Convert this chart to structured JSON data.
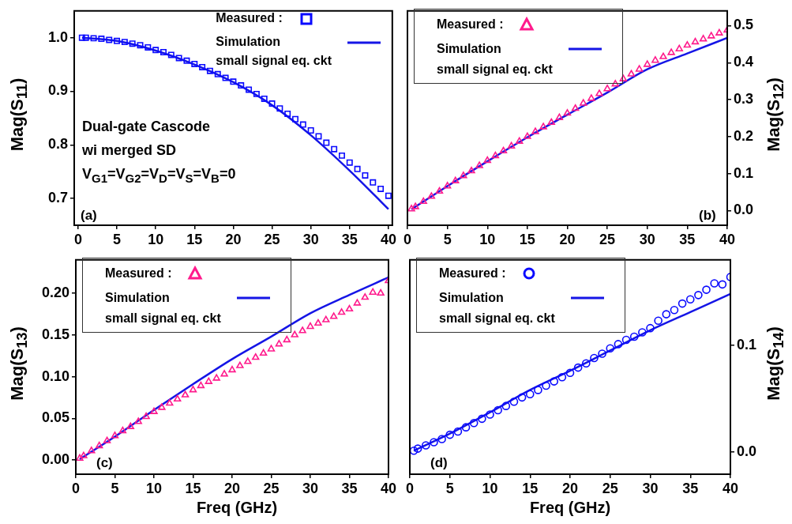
{
  "chart_data": [
    {
      "type": "line",
      "ylabel": "Mag(S$_{11}$)",
      "xlim": [
        -0.5,
        40.5
      ],
      "xticks": [
        0,
        5,
        10,
        15,
        20,
        25,
        30,
        35,
        40
      ],
      "ylim": [
        0.65,
        1.05
      ],
      "yticks": [
        0.7,
        0.8,
        0.9,
        {
          "value": 1,
          "label": "1.0"
        }
      ],
      "grid": false,
      "legend": "top right",
      "annotations": [
        "Dual-gate Cascode",
        "wi merged SD",
        "V$_{G1}$=V$_{G2}$=V$_{D}$=V$_{S}$=V$_{B}$=0",
        "(a)"
      ],
      "series": [
        {
          "name": "Measured :",
          "type": "scatter",
          "marker": "square",
          "color": "#0a0aff",
          "x": [
            0.5,
            1,
            2,
            3,
            4,
            5,
            6,
            7,
            8,
            9,
            10,
            11,
            12,
            13,
            14,
            15,
            16,
            17,
            18,
            19,
            20,
            21,
            22,
            23,
            24,
            25,
            26,
            27,
            28,
            29,
            30,
            31,
            32,
            33,
            34,
            35,
            36,
            37,
            38,
            39,
            40
          ],
          "values": [
            1.0,
            1.0,
            0.999,
            0.998,
            0.996,
            0.994,
            0.992,
            0.989,
            0.986,
            0.982,
            0.977,
            0.973,
            0.968,
            0.962,
            0.957,
            0.951,
            0.945,
            0.938,
            0.932,
            0.925,
            0.918,
            0.911,
            0.903,
            0.895,
            0.886,
            0.877,
            0.868,
            0.858,
            0.848,
            0.838,
            0.827,
            0.816,
            0.804,
            0.792,
            0.78,
            0.767,
            0.755,
            0.743,
            0.73,
            0.718,
            0.705
          ]
        },
        {
          "name": "Simulation\nsmall signal eq. ckt",
          "marker": "none",
          "color": "#1515e6",
          "x": [
            0.5,
            5,
            10,
            15,
            20,
            25,
            30,
            35,
            40
          ],
          "values": [
            1.0,
            0.994,
            0.976,
            0.95,
            0.917,
            0.874,
            0.818,
            0.752,
            0.68
          ]
        }
      ]
    },
    {
      "type": "line",
      "y2label": "Mag(S$_{12}$)",
      "xlim": [
        0,
        40
      ],
      "xticks": [
        0,
        5,
        10,
        15,
        20,
        25,
        30,
        35,
        40
      ],
      "y2lim": [
        -0.04,
        0.54
      ],
      "y2ticks": [
        {
          "value": 0,
          "label": "0.0"
        },
        0.1,
        0.2,
        0.3,
        0.4,
        0.5
      ],
      "grid": false,
      "legend": "top left",
      "annotations": [
        "(b)"
      ],
      "series": [
        {
          "name": "Measured :",
          "type": "scatter",
          "marker": "triangle",
          "axis": "y2",
          "color": "#ff1a8c",
          "x": [
            0.5,
            1,
            2,
            3,
            4,
            5,
            6,
            7,
            8,
            9,
            10,
            11,
            12,
            13,
            14,
            15,
            16,
            17,
            18,
            19,
            20,
            21,
            22,
            23,
            24,
            25,
            26,
            27,
            28,
            29,
            30,
            31,
            32,
            33,
            34,
            35,
            36,
            37,
            38,
            39,
            40
          ],
          "values": [
            0.004,
            0.01,
            0.024,
            0.038,
            0.052,
            0.066,
            0.08,
            0.094,
            0.107,
            0.121,
            0.135,
            0.148,
            0.161,
            0.174,
            0.187,
            0.2,
            0.213,
            0.226,
            0.238,
            0.251,
            0.263,
            0.276,
            0.29,
            0.303,
            0.316,
            0.329,
            0.342,
            0.356,
            0.369,
            0.382,
            0.395,
            0.406,
            0.416,
            0.427,
            0.437,
            0.447,
            0.456,
            0.464,
            0.472,
            0.48,
            0.488
          ]
        },
        {
          "name": "Simulation\nsmall signal eq. ckt",
          "marker": "none",
          "axis": "y2",
          "color": "#1515e6",
          "x": [
            0.5,
            5,
            10,
            15,
            20,
            25,
            30,
            35,
            40
          ],
          "values": [
            0.003,
            0.066,
            0.133,
            0.198,
            0.259,
            0.319,
            0.382,
            0.425,
            0.467
          ]
        }
      ]
    },
    {
      "type": "line",
      "ylabel": "Mag(S$_{13}$)",
      "xlabel": "Freq (GHz)",
      "xlim": [
        0,
        40
      ],
      "xticks": [
        0,
        5,
        10,
        15,
        20,
        25,
        30,
        35,
        40
      ],
      "ylim": [
        -0.017,
        0.24
      ],
      "yticks": [
        {
          "value": 0,
          "label": "0.00"
        },
        0.05,
        {
          "value": 0.1,
          "label": "0.10"
        },
        0.15,
        {
          "value": 0.2,
          "label": "0.20"
        }
      ],
      "grid": false,
      "legend": "top left",
      "annotations": [
        "(c)"
      ],
      "series": [
        {
          "name": "Measured :",
          "type": "scatter",
          "marker": "triangle",
          "color": "#ff1a8c",
          "x": [
            0.5,
            1,
            2,
            3,
            4,
            5,
            6,
            7,
            8,
            9,
            10,
            11,
            12,
            13,
            14,
            15,
            16,
            17,
            18,
            19,
            20,
            21,
            22,
            23,
            24,
            25,
            26,
            27,
            28,
            29,
            30,
            31,
            32,
            33,
            34,
            35,
            36,
            37,
            38,
            39,
            40
          ],
          "values": [
            0.002,
            0.005,
            0.011,
            0.017,
            0.023,
            0.029,
            0.035,
            0.04,
            0.046,
            0.052,
            0.058,
            0.063,
            0.068,
            0.073,
            0.078,
            0.084,
            0.089,
            0.094,
            0.098,
            0.103,
            0.108,
            0.113,
            0.118,
            0.123,
            0.128,
            0.133,
            0.139,
            0.144,
            0.15,
            0.155,
            0.16,
            0.164,
            0.168,
            0.172,
            0.177,
            0.181,
            0.188,
            0.195,
            0.201,
            0.2,
            0.215
          ]
        },
        {
          "name": "Simulation\nsmall signal eq. ckt",
          "marker": "none",
          "color": "#1515e6",
          "x": [
            0.5,
            5,
            10,
            15,
            20,
            25,
            30,
            35,
            40
          ],
          "values": [
            0.001,
            0.028,
            0.06,
            0.091,
            0.121,
            0.148,
            0.176,
            0.198,
            0.219
          ]
        }
      ]
    },
    {
      "type": "line",
      "y2label": "Mag(S$_{14}$)",
      "xlabel": "Freq (GHz)",
      "xlim": [
        0,
        40
      ],
      "xticks": [
        0,
        5,
        10,
        15,
        20,
        25,
        30,
        35,
        40
      ],
      "y2lim": [
        -0.021,
        0.18
      ],
      "y2ticks": [
        {
          "value": 0,
          "label": "0.0"
        },
        0.1
      ],
      "grid": false,
      "legend": "top left",
      "annotations": [
        "(d)"
      ],
      "series": [
        {
          "name": "Measured :",
          "type": "scatter",
          "marker": "circle",
          "axis": "y2",
          "color": "#0a0aff",
          "x": [
            0.5,
            1,
            2,
            3,
            4,
            5,
            6,
            7,
            8,
            9,
            10,
            11,
            12,
            13,
            14,
            15,
            16,
            17,
            18,
            19,
            20,
            21,
            22,
            23,
            24,
            25,
            26,
            27,
            28,
            29,
            30,
            31,
            32,
            33,
            34,
            35,
            36,
            37,
            38,
            39,
            40
          ],
          "values": [
            0.001,
            0.003,
            0.006,
            0.009,
            0.012,
            0.016,
            0.019,
            0.023,
            0.027,
            0.031,
            0.035,
            0.039,
            0.043,
            0.047,
            0.051,
            0.054,
            0.058,
            0.062,
            0.066,
            0.07,
            0.074,
            0.079,
            0.083,
            0.088,
            0.092,
            0.097,
            0.101,
            0.105,
            0.108,
            0.112,
            0.116,
            0.123,
            0.129,
            0.133,
            0.139,
            0.143,
            0.147,
            0.152,
            0.158,
            0.157,
            0.164
          ]
        },
        {
          "name": "Simulation\nsmall signal eq. ckt",
          "marker": "none",
          "axis": "y2",
          "color": "#1515e6",
          "x": [
            0.5,
            5,
            10,
            15,
            20,
            25,
            30,
            35,
            40
          ],
          "values": [
            0.001,
            0.017,
            0.037,
            0.058,
            0.076,
            0.095,
            0.114,
            0.131,
            0.148
          ]
        }
      ]
    }
  ]
}
